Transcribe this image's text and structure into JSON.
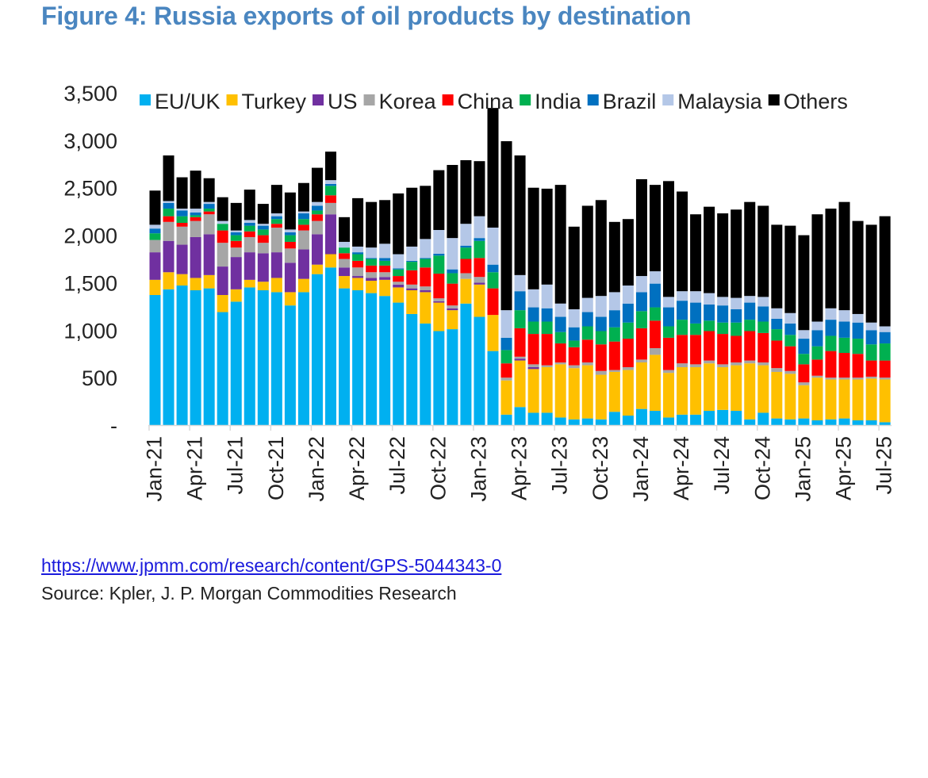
{
  "header": {
    "title": "Figure 4: Russia exports of oil products by destination"
  },
  "footer": {
    "link_text": "https://www.jpmm.com/research/content/GPS-5044343-0",
    "source": "Source: Kpler, J. P. Morgan Commodities Research"
  },
  "chart_data": {
    "type": "bar",
    "stacked": true,
    "title": "Figure 4: Russia exports of oil products by destination",
    "xlabel": "",
    "ylabel": "",
    "ylim": [
      0,
      3500
    ],
    "yticks": [
      0,
      500,
      1000,
      1500,
      2000,
      2500,
      3000,
      3500
    ],
    "ytick_labels": [
      "-",
      "500",
      "1,000",
      "1,500",
      "2,000",
      "2,500",
      "3,000",
      "3,500"
    ],
    "grid": false,
    "legend_position": "top",
    "xtick_labels": [
      "Jan-21",
      "Apr-21",
      "Jul-21",
      "Oct-21",
      "Jan-22",
      "Apr-22",
      "Jul-22",
      "Oct-22",
      "Jan-23",
      "Apr-23",
      "Jul-23",
      "Oct-23",
      "Jan-24",
      "Apr-24",
      "Jul-24",
      "Oct-24",
      "Jan-25",
      "Apr-25",
      "Jul-25"
    ],
    "xtick_every": 3,
    "categories": [
      "Jan-21",
      "Feb-21",
      "Mar-21",
      "Apr-21",
      "May-21",
      "Jun-21",
      "Jul-21",
      "Aug-21",
      "Sep-21",
      "Oct-21",
      "Nov-21",
      "Dec-21",
      "Jan-22",
      "Feb-22",
      "Mar-22",
      "Apr-22",
      "May-22",
      "Jun-22",
      "Jul-22",
      "Aug-22",
      "Sep-22",
      "Oct-22",
      "Nov-22",
      "Dec-22",
      "Jan-23",
      "Feb-23",
      "Mar-23",
      "Apr-23",
      "May-23",
      "Jun-23",
      "Jul-23",
      "Aug-23",
      "Sep-23",
      "Oct-23",
      "Nov-23",
      "Dec-23",
      "Jan-24",
      "Feb-24",
      "Mar-24",
      "Apr-24",
      "May-24",
      "Jun-24",
      "Jul-24",
      "Aug-24",
      "Sep-24",
      "Oct-24",
      "Nov-24",
      "Dec-24",
      "Jan-25",
      "Feb-25",
      "Mar-25",
      "Apr-25",
      "May-25",
      "Jun-25",
      "Jul-25"
    ],
    "series": [
      {
        "name": "EU/UK",
        "color": "#00b0f0",
        "values": [
          1370,
          1430,
          1470,
          1420,
          1440,
          1190,
          1300,
          1450,
          1420,
          1400,
          1260,
          1400,
          1590,
          1660,
          1440,
          1420,
          1390,
          1360,
          1290,
          1170,
          1070,
          990,
          1010,
          1280,
          1140,
          780,
          110,
          190,
          130,
          130,
          80,
          60,
          70,
          60,
          140,
          100,
          170,
          150,
          80,
          110,
          110,
          150,
          160,
          150,
          60,
          130,
          70,
          60,
          70,
          50,
          60,
          70,
          50,
          50,
          30
        ]
      },
      {
        "name": "Turkey",
        "color": "#ffc000",
        "values": [
          160,
          180,
          120,
          130,
          140,
          180,
          130,
          80,
          90,
          150,
          140,
          140,
          100,
          140,
          130,
          130,
          130,
          170,
          160,
          250,
          330,
          300,
          200,
          260,
          340,
          380,
          360,
          490,
          460,
          480,
          560,
          540,
          560,
          470,
          420,
          480,
          490,
          590,
          470,
          500,
          500,
          500,
          450,
          480,
          590,
          500,
          490,
          480,
          350,
          450,
          420,
          410,
          430,
          440,
          450
        ]
      },
      {
        "name": "US",
        "color": "#7030a0",
        "values": [
          290,
          330,
          310,
          430,
          430,
          300,
          340,
          290,
          300,
          270,
          310,
          310,
          320,
          420,
          90,
          20,
          30,
          30,
          30,
          20,
          20,
          15,
          20,
          0,
          20,
          0,
          0,
          20,
          20,
          0,
          0,
          0,
          0,
          0,
          0,
          0,
          0,
          0,
          0,
          0,
          0,
          0,
          0,
          0,
          0,
          0,
          0,
          0,
          0,
          0,
          0,
          0,
          0,
          0,
          0
        ]
      },
      {
        "name": "Korea",
        "color": "#a6a6a6",
        "values": [
          130,
          200,
          190,
          170,
          210,
          250,
          100,
          160,
          110,
          260,
          150,
          200,
          140,
          120,
          90,
          90,
          60,
          50,
          30,
          40,
          40,
          30,
          30,
          60,
          60,
          0,
          30,
          20,
          30,
          20,
          20,
          30,
          30,
          40,
          20,
          30,
          30,
          70,
          30,
          40,
          30,
          30,
          30,
          30,
          30,
          30,
          40,
          30,
          30,
          20,
          20,
          20,
          20,
          20,
          20
        ]
      },
      {
        "name": "China",
        "color": "#ff0000",
        "values": [
          0,
          60,
          40,
          40,
          30,
          130,
          70,
          60,
          80,
          40,
          70,
          60,
          70,
          80,
          60,
          70,
          70,
          70,
          60,
          150,
          200,
          260,
          230,
          150,
          200,
          280,
          150,
          300,
          320,
          330,
          200,
          190,
          240,
          280,
          300,
          300,
          330,
          290,
          340,
          300,
          310,
          310,
          320,
          280,
          310,
          310,
          290,
          260,
          190,
          170,
          280,
          260,
          250,
          170,
          180
        ]
      },
      {
        "name": "India",
        "color": "#00b050",
        "values": [
          70,
          80,
          70,
          20,
          30,
          70,
          60,
          60,
          60,
          50,
          70,
          60,
          40,
          100,
          60,
          70,
          70,
          50,
          70,
          90,
          90,
          190,
          110,
          120,
          180,
          170,
          140,
          190,
          130,
          130,
          120,
          70,
          140,
          140,
          150,
          170,
          180,
          140,
          120,
          160,
          120,
          110,
          120,
          140,
          120,
          120,
          120,
          120,
          110,
          140,
          160,
          160,
          160,
          170,
          180
        ]
      },
      {
        "name": "Brazil",
        "color": "#0070c0",
        "values": [
          50,
          60,
          60,
          30,
          50,
          0,
          30,
          30,
          40,
          30,
          30,
          60,
          50,
          20,
          0,
          20,
          10,
          30,
          10,
          10,
          10,
          20,
          40,
          20,
          30,
          80,
          130,
          200,
          150,
          140,
          160,
          140,
          150,
          150,
          180,
          200,
          200,
          250,
          200,
          200,
          220,
          170,
          180,
          140,
          180,
          160,
          110,
          120,
          160,
          170,
          170,
          170,
          170,
          150,
          120
        ]
      },
      {
        "name": "Malaysia",
        "color": "#b4c7e7",
        "values": [
          40,
          20,
          20,
          40,
          20,
          30,
          20,
          30,
          20,
          30,
          30,
          20,
          40,
          40,
          60,
          60,
          110,
          150,
          150,
          150,
          200,
          250,
          330,
          230,
          230,
          390,
          290,
          170,
          190,
          250,
          140,
          190,
          150,
          220,
          190,
          190,
          170,
          130,
          110,
          100,
          120,
          120,
          90,
          120,
          70,
          100,
          110,
          110,
          90,
          90,
          120,
          120,
          90,
          80,
          60
        ]
      },
      {
        "name": "Others",
        "color": "#000000",
        "values": [
          360,
          480,
          330,
          400,
          250,
          250,
          290,
          320,
          210,
          300,
          390,
          300,
          360,
          300,
          260,
          510,
          480,
          460,
          640,
          620,
          560,
          630,
          770,
          670,
          580,
          1260,
          1780,
          1260,
          1070,
          1010,
          1250,
          870,
          970,
          1010,
          740,
          700,
          1020,
          910,
          1220,
          1050,
          810,
          910,
          880,
          930,
          990,
          960,
          880,
          920,
          1000,
          1130,
          1050,
          1140,
          980,
          1030,
          1160
        ]
      }
    ]
  },
  "legend": [
    {
      "label": "EU/UK",
      "color": "#00b0f0"
    },
    {
      "label": "Turkey",
      "color": "#ffc000"
    },
    {
      "label": "US",
      "color": "#7030a0"
    },
    {
      "label": "Korea",
      "color": "#a6a6a6"
    },
    {
      "label": "China",
      "color": "#ff0000"
    },
    {
      "label": "India",
      "color": "#00b050"
    },
    {
      "label": "Brazil",
      "color": "#0070c0"
    },
    {
      "label": "Malaysia",
      "color": "#b4c7e7"
    },
    {
      "label": "Others",
      "color": "#000000"
    }
  ]
}
